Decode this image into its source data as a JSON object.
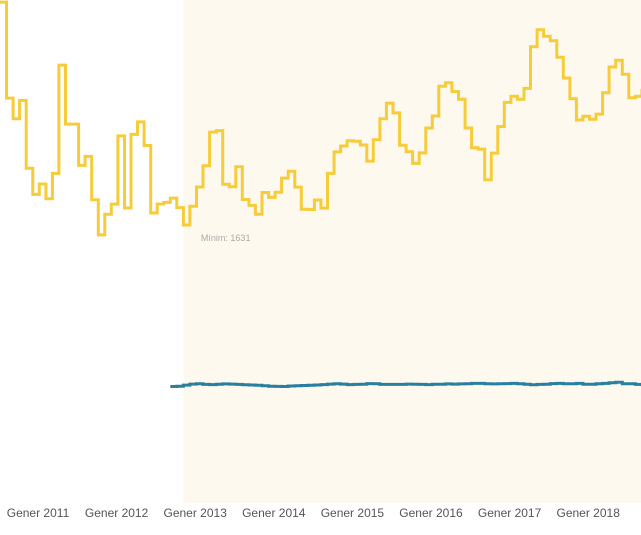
{
  "chart_data": {
    "type": "line",
    "step": true,
    "x_ticks": [
      "Gener 2011",
      "Gener 2012",
      "Gener 2013",
      "Gener 2014",
      "Gener 2015",
      "Gener 2016",
      "Gener 2017",
      "Gener 2018"
    ],
    "x_start": "2011-01",
    "highlight_from": "2013-05",
    "ylim": [
      0,
      3000
    ],
    "grid": false,
    "legend": "none",
    "annotations": [
      {
        "text": "Mínim: 1631",
        "x": "2013-11",
        "y": 1631
      }
    ],
    "series": [
      {
        "color": "#f6cc3a",
        "values": [
          2915,
          2362,
          2243,
          2349,
          1958,
          1807,
          1867,
          1782,
          1928,
          2552,
          2212,
          2212,
          1974,
          2026,
          1776,
          1574,
          1693,
          1751,
          2144,
          1729,
          2153,
          2225,
          2089,
          1700,
          1752,
          1761,
          1786,
          1731,
          1631,
          1739,
          1850,
          1972,
          2166,
          2175,
          1866,
          1851,
          1966,
          1778,
          1744,
          1693,
          1818,
          1790,
          1819,
          1901,
          1940,
          1849,
          1722,
          1720,
          1775,
          1728,
          1928,
          2052,
          2086,
          2116,
          2113,
          2092,
          1999,
          2122,
          2243,
          2333,
          2277,
          2090,
          2053,
          1986,
          2046,
          2190,
          2259,
          2430,
          2451,
          2400,
          2356,
          2190,
          2076,
          2068,
          1892,
          2045,
          2198,
          2337,
          2373,
          2355,
          2418,
          2658,
          2756,
          2718,
          2693,
          2598,
          2478,
          2358,
          2236,
          2258,
          2240,
          2270,
          2393,
          2541,
          2580,
          2500,
          2364,
          2373,
          2407,
          2413,
          2349,
          2368,
          2535,
          2750,
          2895,
          2815,
          2765,
          2653,
          2584
        ]
      },
      {
        "color": "#2a7fa1",
        "values": [
          null,
          null,
          null,
          null,
          null,
          null,
          null,
          null,
          null,
          null,
          null,
          null,
          null,
          null,
          null,
          null,
          null,
          null,
          null,
          null,
          null,
          null,
          null,
          null,
          null,
          null,
          700,
          702,
          708,
          714,
          716,
          712,
          711,
          713,
          715,
          714,
          712,
          710,
          709,
          707,
          705,
          702,
          701,
          700,
          703,
          705,
          706,
          707,
          709,
          711,
          714,
          716,
          714,
          711,
          712,
          713,
          717,
          716,
          712,
          712,
          712,
          712,
          714,
          713,
          712,
          711,
          713,
          713,
          715,
          714,
          715,
          716,
          718,
          718,
          716,
          715,
          716,
          717,
          718,
          716,
          713,
          710,
          712,
          713,
          717,
          718,
          716,
          716,
          718,
          713,
          713,
          716,
          718,
          722,
          725,
          716,
          716,
          712,
          711,
          712,
          710,
          713,
          715,
          717,
          714,
          711,
          712,
          713,
          711,
          714,
          717
        ]
      }
    ]
  }
}
